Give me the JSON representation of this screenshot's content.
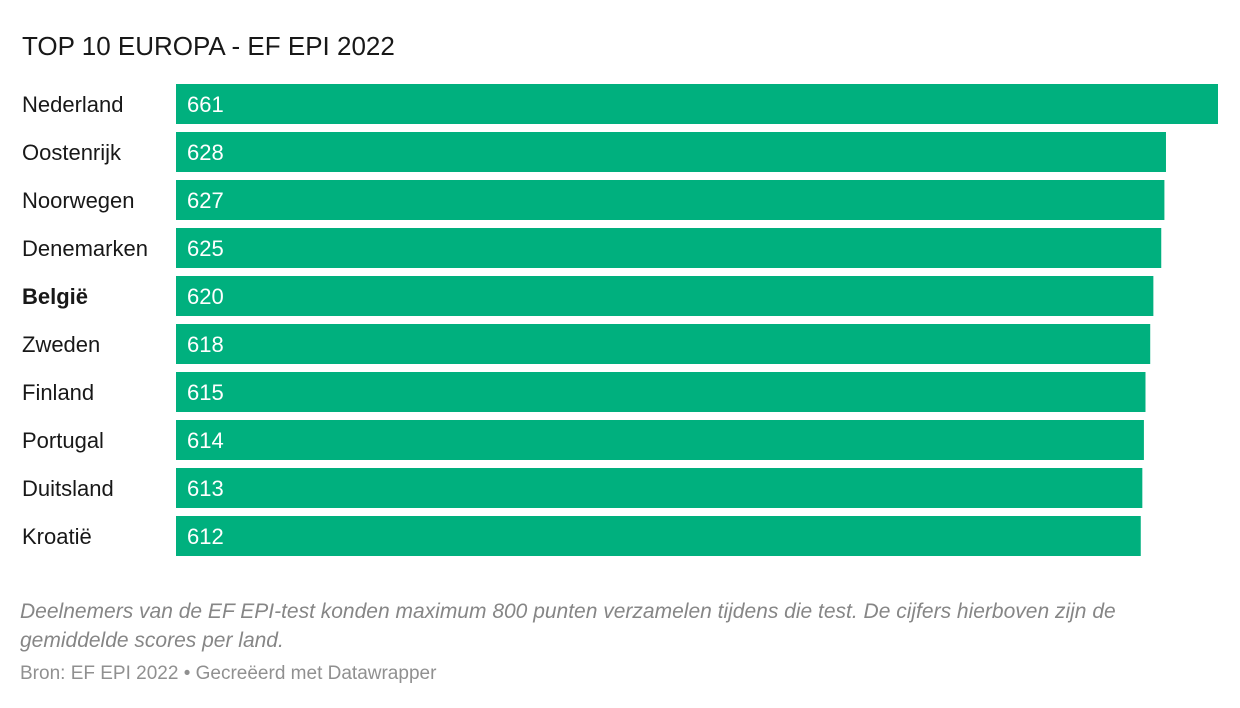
{
  "chart_data": {
    "type": "bar",
    "orientation": "horizontal",
    "title": "TOP 10 EUROPA - EF EPI 2022",
    "categories": [
      "Nederland",
      "Oostenrijk",
      "Noorwegen",
      "Denemarken",
      "België",
      "Zweden",
      "Finland",
      "Portugal",
      "Duitsland",
      "Kroatië"
    ],
    "values": [
      661,
      628,
      627,
      625,
      620,
      618,
      615,
      614,
      613,
      612
    ],
    "highlighted_category": "België",
    "data_labels": "inside-left",
    "grid": false,
    "colors": {
      "bar": "#00b07e"
    }
  },
  "notes": "Deelnemers van de EF EPI-test konden maximum 800 punten verzamelen tijdens die test. De cijfers hierboven zijn de gemiddelde scores per land.",
  "source": "Bron: EF EPI 2022 • Gecreëerd met Datawrapper"
}
